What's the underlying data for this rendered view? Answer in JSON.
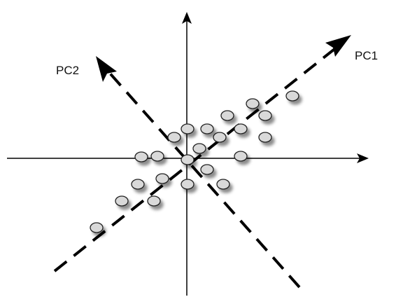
{
  "diagram": {
    "axis_1_label": "PC1",
    "axis_2_label": "PC2"
  },
  "colors": {
    "point_fill": "#d9d9d9",
    "point_stroke": "#222222",
    "line": "#000000"
  },
  "icons": {
    "axis_arrow": "arrow-head-icon",
    "point": "circle-icon"
  }
}
